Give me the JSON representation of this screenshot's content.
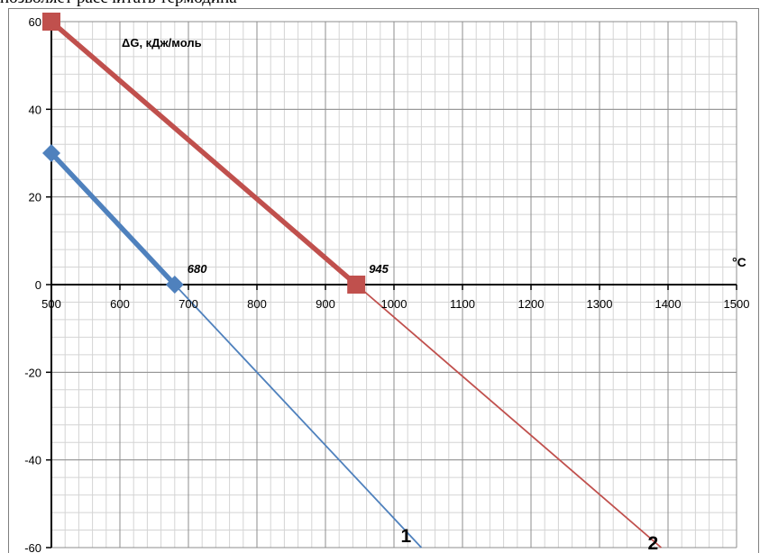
{
  "caption": "позволяет рассчитать термодина",
  "chart_data": {
    "type": "line",
    "ylabel": "ΔG, кДж/моль",
    "xlabel": "°C",
    "xlim": [
      500,
      1500
    ],
    "ylim": [
      -60,
      60
    ],
    "x_ticks": [
      500,
      600,
      700,
      800,
      900,
      1000,
      1100,
      1200,
      1300,
      1400,
      1500
    ],
    "y_ticks": [
      60,
      40,
      20,
      0,
      -20,
      -40,
      -60
    ],
    "x_tick_labels": [
      "500",
      "600",
      "700",
      "800",
      "900",
      "1000",
      "1100",
      "1200",
      "1300",
      "1400",
      "1500"
    ],
    "y_tick_labels": [
      "60",
      "40",
      "20",
      "0",
      "-20",
      "-40",
      "-60"
    ],
    "grid": true,
    "series": [
      {
        "name": "1",
        "color": "#4f81bd",
        "marker": "diamond",
        "thick_points": [
          [
            500,
            30
          ],
          [
            680,
            0
          ]
        ],
        "thin_points": [
          [
            680,
            0
          ],
          [
            1040,
            -60
          ]
        ],
        "markers": [
          [
            500,
            30
          ],
          [
            680,
            0
          ]
        ]
      },
      {
        "name": "2",
        "color": "#c0504d",
        "marker": "square",
        "thick_points": [
          [
            500,
            60
          ],
          [
            945,
            0
          ]
        ],
        "thin_points": [
          [
            945,
            0
          ],
          [
            1390,
            -60
          ]
        ],
        "markers": [
          [
            500,
            60
          ],
          [
            945,
            0
          ]
        ]
      }
    ],
    "annotations": [
      {
        "text": "680",
        "x": 680,
        "y": 0
      },
      {
        "text": "945",
        "x": 945,
        "y": 0
      }
    ]
  }
}
